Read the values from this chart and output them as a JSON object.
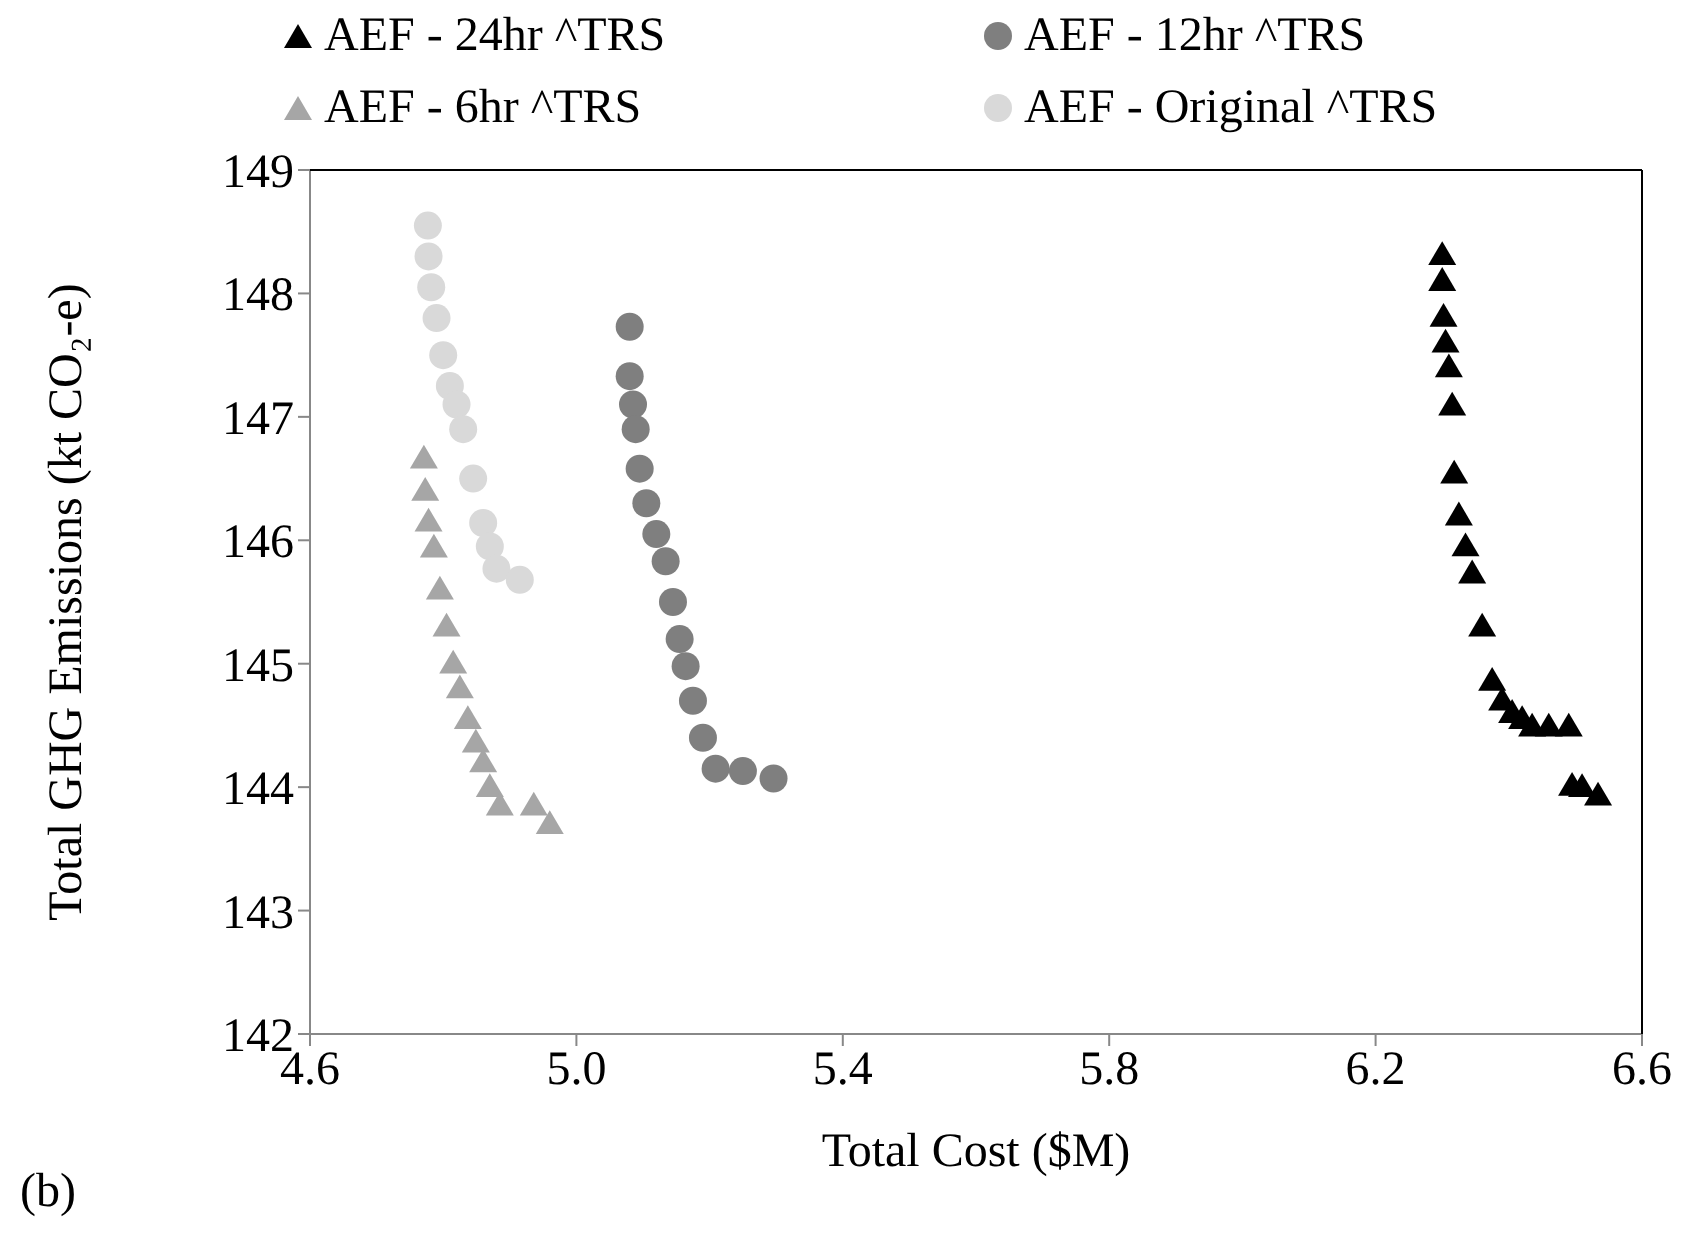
{
  "chart_data": {
    "type": "scatter",
    "xlabel": "Total Cost ($M)",
    "ylabel": "Total GHG Emissions (kt CO₂-e)",
    "xlim": [
      4.6,
      6.6
    ],
    "xticks": [
      4.6,
      {
        "value": 5,
        "label": "5.0"
      },
      5.4,
      5.8,
      6.2,
      6.6
    ],
    "ylim": [
      142,
      149
    ],
    "yticks": [
      142,
      143,
      144,
      145,
      146,
      147,
      148,
      149
    ],
    "grid": false,
    "legend": "top",
    "annotations": [
      "(b)"
    ],
    "series": [
      {
        "name": "AEF - 24hr ^TRS",
        "color": "#000000",
        "marker": "triangle",
        "x": [
          6.3,
          6.3,
          6.302,
          6.305,
          6.31,
          6.315,
          6.318,
          6.325,
          6.335,
          6.345,
          6.36,
          6.375,
          6.39,
          6.405,
          6.42,
          6.435,
          6.46,
          6.49,
          6.495,
          6.51,
          6.534
        ],
        "values": [
          148.31,
          148.1,
          147.81,
          147.6,
          147.4,
          147.09,
          146.54,
          146.2,
          145.95,
          145.73,
          145.3,
          144.86,
          144.7,
          144.6,
          144.55,
          144.49,
          144.49,
          144.49,
          144.01,
          144.0,
          143.93
        ]
      },
      {
        "name": "AEF - 12hr ^TRS",
        "color": "#7f7f7f",
        "marker": "circle",
        "x": [
          5.08,
          5.08,
          5.085,
          5.089,
          5.095,
          5.105,
          5.12,
          5.134,
          5.145,
          5.155,
          5.164,
          5.175,
          5.19,
          5.209,
          5.25,
          5.296
        ],
        "values": [
          147.73,
          147.33,
          147.1,
          146.9,
          146.58,
          146.3,
          146.05,
          145.83,
          145.5,
          145.2,
          144.98,
          144.7,
          144.4,
          144.15,
          144.13,
          144.07
        ]
      },
      {
        "name": "AEF - 6hr ^TRS",
        "color": "#a6a6a6",
        "marker": "triangle",
        "x": [
          4.771,
          4.773,
          4.778,
          4.786,
          4.795,
          4.805,
          4.815,
          4.825,
          4.837,
          4.849,
          4.86,
          4.87,
          4.885,
          4.936,
          4.96
        ],
        "values": [
          146.66,
          146.4,
          146.15,
          145.94,
          145.6,
          145.3,
          145.0,
          144.8,
          144.55,
          144.36,
          144.2,
          144.0,
          143.85,
          143.85,
          143.7
        ]
      },
      {
        "name": "AEF - Original ^TRS",
        "color": "#d9d9d9",
        "marker": "circle",
        "x": [
          4.777,
          4.778,
          4.782,
          4.79,
          4.8,
          4.81,
          4.82,
          4.83,
          4.845,
          4.86,
          4.87,
          4.88,
          4.915
        ],
        "values": [
          148.55,
          148.3,
          148.05,
          147.8,
          147.5,
          147.25,
          147.1,
          146.9,
          146.5,
          146.14,
          145.95,
          145.77,
          145.68
        ]
      }
    ]
  }
}
